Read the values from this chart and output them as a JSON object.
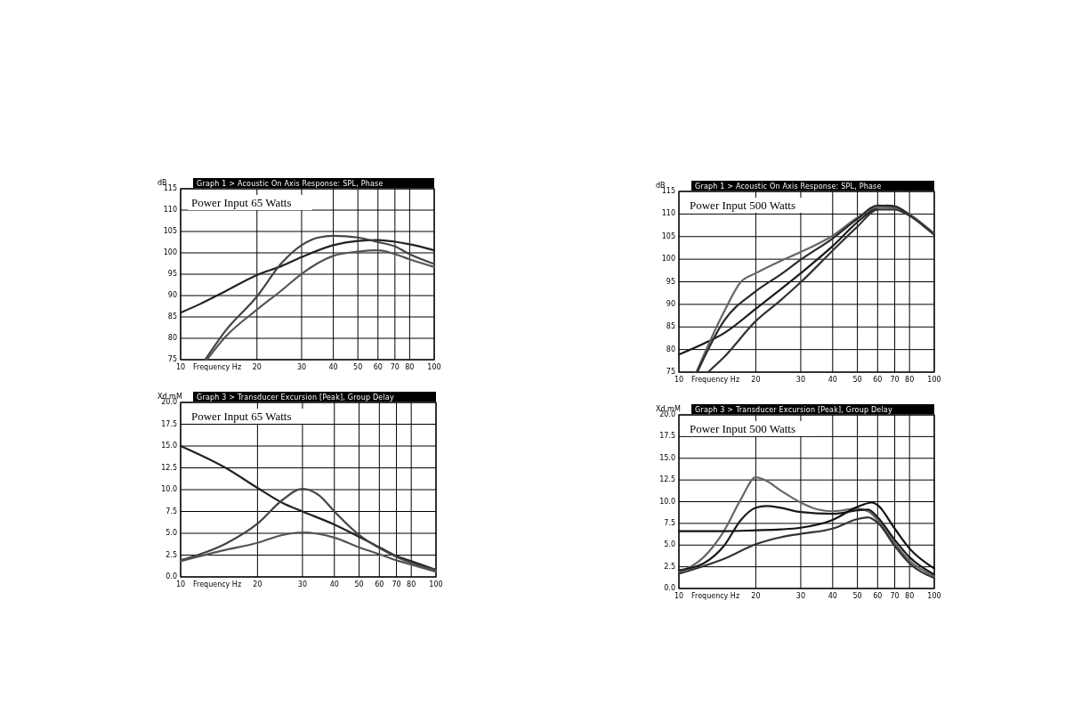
{
  "chart_data": [
    {
      "type": "line",
      "title": "Graph 1 > Acoustic On Axis Response: SPL, Phase",
      "xlabel": "Frequency Hz",
      "ylabel": "dB",
      "annotations": [
        "Power Input 65 Watts"
      ],
      "log": "x",
      "grid": true,
      "xlim": [
        10,
        100
      ],
      "xticks": [
        10,
        20,
        30,
        40,
        50,
        60,
        70,
        80,
        100
      ],
      "ylim": [
        75,
        115
      ],
      "yticks": [
        75,
        80,
        85,
        90,
        95,
        100,
        105,
        110,
        115
      ],
      "series": [
        {
          "color": "#222222",
          "x": [
            10,
            12,
            15,
            20,
            25,
            30,
            40,
            50,
            60,
            70,
            80,
            100
          ],
          "values": [
            86,
            88.1,
            91,
            94.8,
            96.9,
            99,
            101.8,
            102.8,
            103,
            102.6,
            102,
            100.6
          ]
        },
        {
          "color": "#444444",
          "x": [
            12.5,
            15,
            20,
            25,
            30,
            35,
            40,
            50,
            60,
            70,
            80,
            100
          ],
          "values": [
            75,
            81.7,
            89.8,
            97.6,
            101.8,
            103.6,
            104,
            103.6,
            102.5,
            101.5,
            99.7,
            97.4
          ]
        },
        {
          "color": "#555555",
          "x": [
            12.7,
            15,
            20,
            25,
            30,
            40,
            50,
            60,
            70,
            80,
            100
          ],
          "values": [
            75,
            80.3,
            86.7,
            91.2,
            95.1,
            99.3,
            100.3,
            100.6,
            99.7,
            98.5,
            96.7
          ]
        }
      ]
    },
    {
      "type": "line",
      "title": "Graph 1 > Acoustic On Axis Response: SPL, Phase",
      "xlabel": "Frequency Hz",
      "ylabel": "dB",
      "annotations": [
        "Power Input 500 Watts"
      ],
      "log": "x",
      "grid": true,
      "xlim": [
        10,
        100
      ],
      "xticks": [
        10,
        20,
        30,
        40,
        50,
        60,
        70,
        80,
        100
      ],
      "ylim": [
        75,
        115
      ],
      "yticks": [
        75,
        80,
        85,
        90,
        95,
        100,
        105,
        110,
        115
      ],
      "series": [
        {
          "color": "#1a1a1a",
          "x": [
            10,
            12.5,
            15,
            20,
            25,
            30,
            40,
            50,
            60,
            65,
            70,
            80,
            100
          ],
          "values": [
            78.9,
            81.3,
            83.6,
            89,
            93.3,
            96.9,
            102.9,
            108.2,
            111.5,
            111.9,
            111.7,
            109.9,
            105.6
          ]
        },
        {
          "color": "#666666",
          "x": [
            11.7,
            15,
            17.5,
            20,
            25,
            30,
            40,
            50,
            60,
            70,
            80,
            100
          ],
          "values": [
            75,
            88.3,
            95,
            96.9,
            99.6,
            101.6,
            105.2,
            109.2,
            111.5,
            111.4,
            109.9,
            105.6
          ]
        },
        {
          "color": "#2a2a2a",
          "x": [
            11.8,
            15,
            20,
            25,
            30,
            40,
            50,
            60,
            70,
            80,
            100
          ],
          "values": [
            75,
            86.3,
            92.9,
            96.6,
            99.9,
            104.6,
            108.9,
            111.9,
            111.7,
            109.7,
            105.4
          ]
        },
        {
          "color": "#333333",
          "x": [
            13,
            15,
            20,
            25,
            30,
            40,
            50,
            60,
            70,
            80,
            100
          ],
          "values": [
            75,
            78.3,
            86.3,
            90.9,
            94.9,
            101.9,
            107.2,
            111,
            111,
            109.6,
            105.4
          ]
        }
      ]
    },
    {
      "type": "line",
      "title": "Graph 3 > Transducer Excursion [Peak], Group Delay",
      "xlabel": "Frequency Hz",
      "ylabel": "Xd mM",
      "annotations": [
        "Power Input 65 Watts"
      ],
      "log": "x",
      "grid": true,
      "xlim": [
        10,
        100
      ],
      "xticks": [
        10,
        20,
        30,
        40,
        50,
        60,
        70,
        80,
        100
      ],
      "ylim": [
        0,
        20
      ],
      "yticks": [
        {
          "value": 0,
          "label": "0.0"
        },
        {
          "value": 2.5,
          "label": "2.5"
        },
        {
          "value": 5,
          "label": "5.0"
        },
        {
          "value": 7.5,
          "label": "7.5"
        },
        {
          "value": 10,
          "label": "10.0"
        },
        {
          "value": 12.5,
          "label": "12.5"
        },
        {
          "value": 15,
          "label": "15.0"
        },
        {
          "value": 17.5,
          "label": "17.5"
        },
        {
          "value": 20,
          "label": "20.0"
        }
      ],
      "series": [
        {
          "color": "#222222",
          "x": [
            10,
            15,
            20,
            25,
            30,
            40,
            50,
            60,
            70,
            80,
            100
          ],
          "values": [
            15,
            12.5,
            10.2,
            8.5,
            7.5,
            6,
            4.6,
            3.4,
            2.4,
            1.8,
            0.8
          ]
        },
        {
          "color": "#444444",
          "x": [
            10,
            15,
            20,
            25,
            30,
            35,
            40,
            50,
            60,
            70,
            80,
            100
          ],
          "values": [
            1.9,
            3.8,
            6.1,
            8.8,
            10.1,
            9.3,
            7.5,
            4.8,
            3.3,
            2.3,
            1.6,
            0.8
          ]
        },
        {
          "color": "#555555",
          "x": [
            10,
            15,
            20,
            25,
            30,
            40,
            50,
            60,
            70,
            80,
            100
          ],
          "values": [
            1.8,
            3.1,
            3.9,
            4.8,
            5.1,
            4.5,
            3.4,
            2.6,
            1.9,
            1.4,
            0.6
          ]
        }
      ]
    },
    {
      "type": "line",
      "title": "Graph 3 > Transducer Excursion [Peak], Group Delay",
      "xlabel": "Frequency Hz",
      "ylabel": "Xd mM",
      "annotations": [
        "Power Input 500 Watts"
      ],
      "log": "x",
      "grid": true,
      "xlim": [
        10,
        100
      ],
      "xticks": [
        10,
        20,
        30,
        40,
        50,
        60,
        70,
        80,
        100
      ],
      "ylim": [
        0,
        20
      ],
      "yticks": [
        {
          "value": 0,
          "label": "0.0"
        },
        {
          "value": 2.5,
          "label": "2.5"
        },
        {
          "value": 5,
          "label": "5.0"
        },
        {
          "value": 7.5,
          "label": "7.5"
        },
        {
          "value": 10,
          "label": "10.0"
        },
        {
          "value": 12.5,
          "label": "12.5"
        },
        {
          "value": 15,
          "label": "15.0"
        },
        {
          "value": 17.5,
          "label": "17.5"
        },
        {
          "value": 20,
          "label": "20.0"
        }
      ],
      "series": [
        {
          "color": "#666666",
          "x": [
            10,
            12.5,
            15,
            17.5,
            20,
            22,
            25,
            30,
            35,
            40,
            50,
            55,
            60,
            70,
            80,
            100
          ],
          "values": [
            1.9,
            3.6,
            6.6,
            10.3,
            12.8,
            12.4,
            11.3,
            9.9,
            9.1,
            8.9,
            9.2,
            8.9,
            7.9,
            5.2,
            3.2,
            1.4
          ]
        },
        {
          "color": "#1a1a1a",
          "x": [
            10,
            12.5,
            15,
            17.5,
            20,
            22,
            25,
            30,
            40,
            50,
            55,
            60,
            70,
            80,
            100
          ],
          "values": [
            2.1,
            2.9,
            4.9,
            7.9,
            9.3,
            9.5,
            9.3,
            8.8,
            8.6,
            9,
            9.1,
            8.2,
            5.6,
            3.6,
            1.6
          ]
        },
        {
          "color": "#111111",
          "x": [
            10,
            15,
            20,
            25,
            30,
            40,
            50,
            57,
            60,
            70,
            80,
            100
          ],
          "values": [
            6.6,
            6.6,
            6.7,
            6.8,
            7,
            7.9,
            9.4,
            9.9,
            9.6,
            6.9,
            4.6,
            2.3
          ]
        },
        {
          "color": "#333333",
          "x": [
            10,
            15,
            20,
            25,
            30,
            40,
            50,
            55,
            60,
            70,
            80,
            100
          ],
          "values": [
            1.7,
            3.4,
            5.1,
            5.9,
            6.3,
            6.9,
            8,
            8.2,
            7.6,
            4.9,
            2.9,
            1.2
          ]
        }
      ]
    }
  ]
}
